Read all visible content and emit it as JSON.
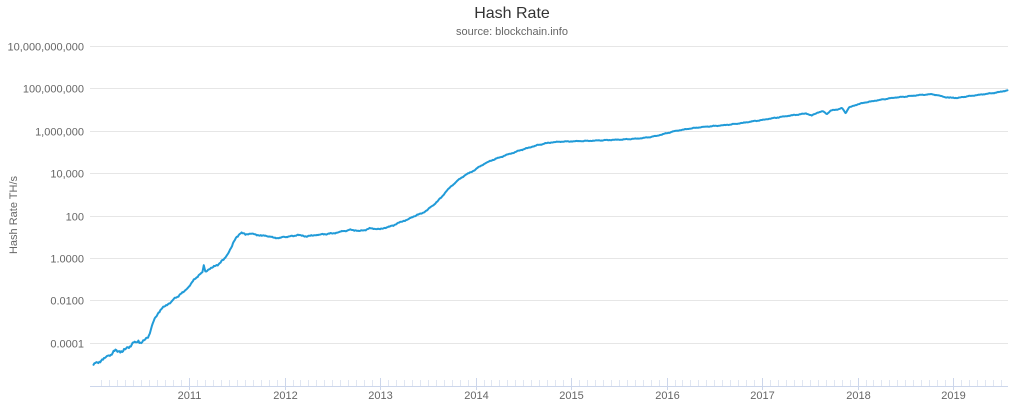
{
  "colors": {
    "line": "#219bd8",
    "grid": "#e6e6e6",
    "axis": "#ccd6eb",
    "text_primary": "#333333",
    "text_secondary": "#666666",
    "background": "#ffffff"
  },
  "chart_data": {
    "type": "line",
    "title": "Hash Rate",
    "subtitle": "source: blockchain.info",
    "xlabel": "",
    "ylabel": "Hash Rate TH/s",
    "legend": "none",
    "grid": "horizontal-only, every 2 decades",
    "y_scale": "log10",
    "y_range_log10": [
      -6,
      10
    ],
    "x_range_years": [
      2009.963,
      2019.575
    ],
    "x_ticks": [
      2011,
      2012,
      2013,
      2014,
      2015,
      2016,
      2017,
      2018,
      2019
    ],
    "y_ticks": [
      {
        "v": 10000000000.0,
        "label": "10,000,000,000"
      },
      {
        "v": 100000000.0,
        "label": "100,000,000"
      },
      {
        "v": 1000000.0,
        "label": "1,000,000"
      },
      {
        "v": 10000.0,
        "label": "10,000"
      },
      {
        "v": 100.0,
        "label": "100"
      },
      {
        "v": 1.0,
        "label": "1.0000"
      },
      {
        "v": 0.01,
        "label": "0.0100"
      },
      {
        "v": 0.0001,
        "label": "0.0001"
      }
    ],
    "units": "TH/s",
    "series": [
      {
        "name": "Hash Rate",
        "color": "#219bd8",
        "points": [
          [
            2010.0,
            9e-06
          ],
          [
            2010.04,
            1.15e-05
          ],
          [
            2010.08,
            1.4e-05
          ],
          [
            2010.12,
            1.9e-05
          ],
          [
            2010.16,
            2.5e-05
          ],
          [
            2010.2,
            3.2e-05
          ],
          [
            2010.24,
            4.4e-05
          ],
          [
            2010.27,
            4e-05
          ],
          [
            2010.3,
            3.6e-05
          ],
          [
            2010.33,
            4.8e-05
          ],
          [
            2010.36,
            6e-05
          ],
          [
            2010.4,
            8e-05
          ],
          [
            2010.44,
            0.000105
          ],
          [
            2010.47,
            0.000125
          ],
          [
            2010.5,
            9.5e-05
          ],
          [
            2010.53,
            0.00013
          ],
          [
            2010.56,
            0.00017
          ],
          [
            2010.58,
            0.00022
          ],
          [
            2010.6,
            0.0004
          ],
          [
            2010.62,
            0.0008
          ],
          [
            2010.65,
            0.0016
          ],
          [
            2010.68,
            0.0026
          ],
          [
            2010.71,
            0.0038
          ],
          [
            2010.74,
            0.005
          ],
          [
            2010.78,
            0.0065
          ],
          [
            2010.82,
            0.009
          ],
          [
            2010.86,
            0.013
          ],
          [
            2010.9,
            0.018
          ],
          [
            2010.94,
            0.024
          ],
          [
            2010.98,
            0.035
          ],
          [
            2011.02,
            0.06
          ],
          [
            2011.06,
            0.1
          ],
          [
            2011.1,
            0.15
          ],
          [
            2011.14,
            0.21
          ],
          [
            2011.155,
            0.45
          ],
          [
            2011.17,
            0.23
          ],
          [
            2011.21,
            0.29
          ],
          [
            2011.25,
            0.36
          ],
          [
            2011.29,
            0.46
          ],
          [
            2011.33,
            0.6
          ],
          [
            2011.36,
            0.8
          ],
          [
            2011.39,
            1.2
          ],
          [
            2011.42,
            2.0
          ],
          [
            2011.45,
            3.5
          ],
          [
            2011.47,
            6.0
          ],
          [
            2011.5,
            10.0
          ],
          [
            2011.53,
            13.5
          ],
          [
            2011.56,
            14.5
          ],
          [
            2011.6,
            13.0
          ],
          [
            2011.64,
            13.8
          ],
          [
            2011.68,
            13.2
          ],
          [
            2011.72,
            12.0
          ],
          [
            2011.76,
            11.0
          ],
          [
            2011.8,
            11.3
          ],
          [
            2011.84,
            10.2
          ],
          [
            2011.88,
            9.2
          ],
          [
            2011.92,
            8.6
          ],
          [
            2011.96,
            9.0
          ],
          [
            2012.0,
            9.8
          ],
          [
            2012.05,
            10.3
          ],
          [
            2012.1,
            10.8
          ],
          [
            2012.14,
            12.5
          ],
          [
            2012.18,
            11.0
          ],
          [
            2012.22,
            10.4
          ],
          [
            2012.27,
            11.0
          ],
          [
            2012.32,
            11.8
          ],
          [
            2012.37,
            12.6
          ],
          [
            2012.42,
            13.2
          ],
          [
            2012.47,
            13.8
          ],
          [
            2012.52,
            14.6
          ],
          [
            2012.57,
            16.5
          ],
          [
            2012.62,
            18.5
          ],
          [
            2012.66,
            20.0
          ],
          [
            2012.7,
            21.0
          ],
          [
            2012.74,
            20.0
          ],
          [
            2012.78,
            18.5
          ],
          [
            2012.82,
            19.5
          ],
          [
            2012.86,
            22.0
          ],
          [
            2012.9,
            25.0
          ],
          [
            2012.94,
            23.5
          ],
          [
            2013.0,
            22.5
          ],
          [
            2013.05,
            26.0
          ],
          [
            2013.1,
            30.0
          ],
          [
            2013.15,
            36.0
          ],
          [
            2013.2,
            46.0
          ],
          [
            2013.25,
            56.0
          ],
          [
            2013.3,
            68.0
          ],
          [
            2013.35,
            90.0
          ],
          [
            2013.4,
            110.0
          ],
          [
            2013.45,
            135.0
          ],
          [
            2013.5,
            190.0
          ],
          [
            2013.55,
            290.0
          ],
          [
            2013.6,
            460.0
          ],
          [
            2013.65,
            800.0
          ],
          [
            2013.7,
            1500.0
          ],
          [
            2013.75,
            2500.0
          ],
          [
            2013.8,
            4000.0
          ],
          [
            2013.85,
            6000.0
          ],
          [
            2013.9,
            8500.0
          ],
          [
            2013.95,
            11000.0
          ],
          [
            2014.0,
            15000.0
          ],
          [
            2014.06,
            23000.0
          ],
          [
            2014.12,
            32000.0
          ],
          [
            2014.18,
            42000.0
          ],
          [
            2014.24,
            53000.0
          ],
          [
            2014.3,
            66000.0
          ],
          [
            2014.36,
            82000.0
          ],
          [
            2014.42,
            100000.0
          ],
          [
            2014.48,
            125000.0
          ],
          [
            2014.54,
            150000.0
          ],
          [
            2014.6,
            180000.0
          ],
          [
            2014.67,
            220000.0
          ],
          [
            2014.74,
            260000.0
          ],
          [
            2014.82,
            290000.0
          ],
          [
            2014.9,
            305000.0
          ],
          [
            2015.0,
            315000.0
          ],
          [
            2015.1,
            325000.0
          ],
          [
            2015.2,
            335000.0
          ],
          [
            2015.3,
            350000.0
          ],
          [
            2015.4,
            365000.0
          ],
          [
            2015.5,
            380000.0
          ],
          [
            2015.6,
            400000.0
          ],
          [
            2015.7,
            430000.0
          ],
          [
            2015.8,
            480000.0
          ],
          [
            2015.9,
            580000.0
          ],
          [
            2016.0,
            760000.0
          ],
          [
            2016.08,
            960000.0
          ],
          [
            2016.16,
            1100000.0
          ],
          [
            2016.24,
            1250000.0
          ],
          [
            2016.32,
            1400000.0
          ],
          [
            2016.4,
            1550000.0
          ],
          [
            2016.48,
            1650000.0
          ],
          [
            2016.56,
            1750000.0
          ],
          [
            2016.64,
            1900000.0
          ],
          [
            2016.72,
            2100000.0
          ],
          [
            2016.8,
            2350000.0
          ],
          [
            2016.9,
            2800000.0
          ],
          [
            2017.0,
            3200000.0
          ],
          [
            2017.08,
            3700000.0
          ],
          [
            2017.16,
            4200000.0
          ],
          [
            2017.24,
            4800000.0
          ],
          [
            2017.32,
            5400000.0
          ],
          [
            2017.4,
            6000000.0
          ],
          [
            2017.46,
            6600000.0
          ],
          [
            2017.52,
            5200000.0
          ],
          [
            2017.58,
            7200000.0
          ],
          [
            2017.64,
            8200000.0
          ],
          [
            2017.68,
            6200000.0
          ],
          [
            2017.72,
            9000000.0
          ],
          [
            2017.78,
            10000000.0
          ],
          [
            2017.84,
            11500000.0
          ],
          [
            2017.875,
            6800000.0
          ],
          [
            2017.91,
            12500000.0
          ],
          [
            2017.96,
            15000000.0
          ],
          [
            2018.0,
            17500000.0
          ],
          [
            2018.08,
            21500000.0
          ],
          [
            2018.16,
            25000000.0
          ],
          [
            2018.24,
            29000000.0
          ],
          [
            2018.32,
            33000000.0
          ],
          [
            2018.4,
            37000000.0
          ],
          [
            2018.48,
            40000000.0
          ],
          [
            2018.56,
            44000000.0
          ],
          [
            2018.64,
            48000000.0
          ],
          [
            2018.72,
            51000000.0
          ],
          [
            2018.78,
            53000000.0
          ],
          [
            2018.84,
            47000000.0
          ],
          [
            2018.9,
            40000000.0
          ],
          [
            2018.96,
            36000000.0
          ],
          [
            2019.0,
            37000000.0
          ],
          [
            2019.04,
            34500000.0
          ],
          [
            2019.1,
            39000000.0
          ],
          [
            2019.18,
            44000000.0
          ],
          [
            2019.26,
            49000000.0
          ],
          [
            2019.34,
            54000000.0
          ],
          [
            2019.42,
            60000000.0
          ],
          [
            2019.48,
            67000000.0
          ],
          [
            2019.53,
            74000000.0
          ],
          [
            2019.57,
            81000000.0
          ]
        ]
      }
    ]
  }
}
